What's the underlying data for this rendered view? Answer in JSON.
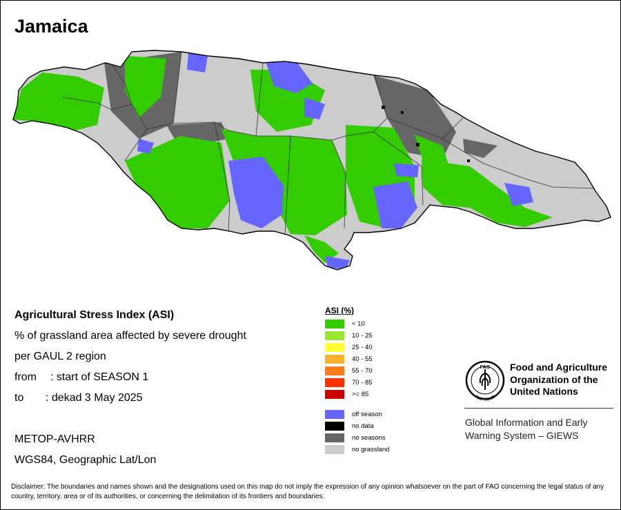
{
  "title": "Jamaica",
  "info": {
    "heading": "Agricultural Stress Index (ASI)",
    "description": "% of grassland area affected by severe drought",
    "aggregation": "per GAUL 2 region",
    "from_label": "from",
    "from_value": ": start of SEASON 1",
    "to_label": "to",
    "to_value": ": dekad 3 May 2025",
    "sensor": "METOP-AVHRR",
    "projection": "WGS84, Geographic Lat/Lon"
  },
  "legend": {
    "title": "ASI (%)",
    "classes": [
      {
        "label": "< 10",
        "color": "#33cc00"
      },
      {
        "label": "10 - 25",
        "color": "#99e62e"
      },
      {
        "label": "25 - 40",
        "color": "#ffff33"
      },
      {
        "label": "40 - 55",
        "color": "#ffb22e"
      },
      {
        "label": "55 - 70",
        "color": "#ff7a1a"
      },
      {
        "label": "70 - 85",
        "color": "#ff3300"
      },
      {
        "label": ">= 85",
        "color": "#cc0000"
      }
    ],
    "other": [
      {
        "label": "off season",
        "color": "#6666ff"
      },
      {
        "label": "no data",
        "color": "#000000"
      },
      {
        "label": "no seasons",
        "color": "#666666"
      },
      {
        "label": "no grassland",
        "color": "#cccccc"
      }
    ]
  },
  "organization": {
    "logo_text": "FAO",
    "logo_motto": "FIAT PANIS",
    "name_line1": "Food and Agriculture",
    "name_line2": "Organization of the",
    "name_line3": "United Nations",
    "program_line1": "Global Information and Early",
    "program_line2": "Warning System – GIEWS"
  },
  "disclaimer": "Disclaimer: The boundaries and names shown and the designations used on this map do not imply the expression of any opinion whatsoever on the part of FAO concerning the legal status of any country, territory, area or of its authorities, or concerning the delimitation of its frontiers and boundaries."
}
